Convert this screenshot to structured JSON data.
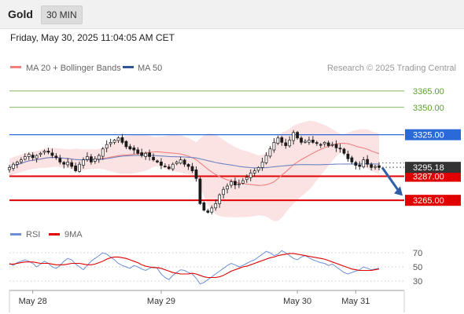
{
  "header": {
    "instrument": "Gold",
    "timeframe": "30 MIN",
    "timestamp": "Friday, May 30, 2025 11:04:05 AM CET"
  },
  "legend": {
    "ma20_label": "MA 20 + Bollinger Bands",
    "ma50_label": "MA 50",
    "credit": "Research © 2025 Trading Central",
    "colors": {
      "ma20": "#f08080",
      "ma50": "#2f5597"
    }
  },
  "chart_data": [
    {
      "type": "candlestick",
      "title": "",
      "ylim": [
        3240,
        3380
      ],
      "levels": [
        {
          "value": 3365.0,
          "label": "3365.00",
          "color": "#5aa02c",
          "style": "thin"
        },
        {
          "value": 3350.0,
          "label": "3350.00",
          "color": "#5aa02c",
          "style": "thin"
        },
        {
          "value": 3325.0,
          "label": "3325.00",
          "color": "#2a6ad8",
          "style": "box"
        },
        {
          "value": 3287.0,
          "label": "3287.00",
          "color": "#e00000",
          "style": "box"
        },
        {
          "value": 3265.0,
          "label": "3265.00",
          "color": "#e00000",
          "style": "box"
        }
      ],
      "last_price": {
        "value": 3295.18,
        "label": "3295.18",
        "color": "#333333"
      },
      "forecast": {
        "from": 3295,
        "to": 3267,
        "color": "#2f5ea8"
      },
      "series_close": [
        3295,
        3298,
        3300,
        3302,
        3305,
        3307,
        3304,
        3306,
        3308,
        3310,
        3309,
        3306,
        3304,
        3300,
        3298,
        3300,
        3296,
        3292,
        3298,
        3302,
        3305,
        3300,
        3303,
        3306,
        3312,
        3316,
        3318,
        3320,
        3322,
        3318,
        3314,
        3312,
        3311,
        3308,
        3306,
        3308,
        3305,
        3302,
        3300,
        3297,
        3296,
        3294,
        3298,
        3300,
        3302,
        3298,
        3296,
        3292,
        3285,
        3262,
        3256,
        3254,
        3258,
        3262,
        3270,
        3275,
        3278,
        3282,
        3279,
        3280,
        3283,
        3286,
        3290,
        3292,
        3295,
        3300,
        3306,
        3312,
        3318,
        3322,
        3318,
        3315,
        3320,
        3327,
        3322,
        3318,
        3319,
        3320,
        3318,
        3317,
        3316,
        3318,
        3315,
        3316,
        3313,
        3312,
        3308,
        3303,
        3300,
        3297,
        3296,
        3302,
        3298,
        3295,
        3296,
        3295
      ]
    },
    {
      "type": "line",
      "title": "",
      "series": [
        {
          "name": "RSI",
          "color": "#6b8fd6"
        },
        {
          "name": "9MA",
          "color": "#e00000"
        }
      ],
      "yticks": [
        70,
        50,
        30
      ],
      "ylim": [
        20,
        80
      ],
      "rsi": [
        55,
        52,
        56,
        58,
        60,
        58,
        55,
        50,
        54,
        58,
        55,
        50,
        48,
        52,
        58,
        62,
        60,
        54,
        50,
        46,
        52,
        58,
        62,
        66,
        70,
        68,
        64,
        60,
        55,
        52,
        50,
        48,
        52,
        50,
        47,
        45,
        48,
        50,
        48,
        40,
        35,
        32,
        38,
        42,
        46,
        45,
        42,
        40,
        34,
        26,
        28,
        32,
        36,
        40,
        44,
        48,
        52,
        55,
        53,
        50,
        52,
        55,
        58,
        60,
        64,
        68,
        72,
        70,
        66,
        68,
        73,
        70,
        66,
        62,
        60,
        64,
        66,
        63,
        60,
        58,
        56,
        55,
        52,
        54,
        50,
        46,
        42,
        40,
        42,
        44,
        46,
        50,
        48,
        46,
        47,
        48
      ],
      "ma9": [
        54,
        54,
        55,
        56,
        57,
        57,
        57,
        56,
        55,
        55,
        55,
        54,
        53,
        53,
        53,
        54,
        55,
        55,
        55,
        54,
        53,
        53,
        54,
        56,
        58,
        61,
        63,
        64,
        64,
        63,
        62,
        60,
        58,
        56,
        53,
        51,
        50,
        49,
        49,
        48,
        46,
        44,
        42,
        41,
        40,
        40,
        40,
        41,
        40,
        38,
        36,
        35,
        35,
        35,
        36,
        38,
        41,
        44,
        46,
        48,
        50,
        51,
        53,
        55,
        57,
        59,
        61,
        63,
        64,
        66,
        67,
        68,
        69,
        69,
        68,
        67,
        66,
        65,
        64,
        63,
        62,
        61,
        59,
        57,
        55,
        53,
        51,
        49,
        47,
        46,
        45,
        45,
        45,
        45,
        46,
        47
      ]
    }
  ],
  "rsi_legend": {
    "rsi_label": "RSI",
    "ma9_label": "9MA"
  },
  "xaxis": {
    "labels": [
      {
        "index": 6,
        "label": "May 28"
      },
      {
        "index": 39,
        "label": "May 29"
      },
      {
        "index": 74,
        "label": "May 30"
      },
      {
        "index": 89,
        "label": "May 31"
      }
    ]
  }
}
